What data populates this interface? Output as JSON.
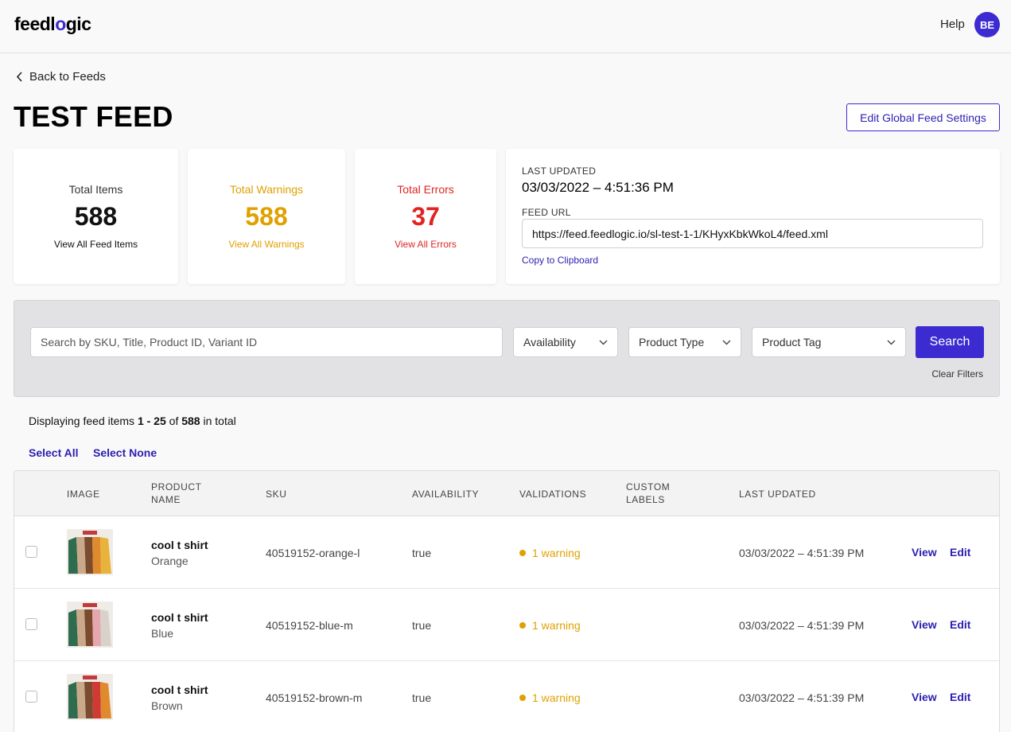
{
  "header": {
    "logo_prefix": "feedl",
    "logo_mark": "o",
    "logo_suffix": "gic",
    "help_label": "Help",
    "avatar_initials": "BE"
  },
  "nav": {
    "back_label": "Back to Feeds"
  },
  "page": {
    "title": "TEST FEED",
    "edit_global_label": "Edit Global Feed Settings"
  },
  "stats": {
    "total_items": {
      "label": "Total Items",
      "value": "588",
      "link": "View All Feed Items"
    },
    "total_warnings": {
      "label": "Total Warnings",
      "value": "588",
      "link": "View All Warnings"
    },
    "total_errors": {
      "label": "Total Errors",
      "value": "37",
      "link": "View All Errors"
    }
  },
  "feed_info": {
    "last_updated_label": "LAST UPDATED",
    "last_updated_value": "03/03/2022 – 4:51:36 PM",
    "feed_url_label": "FEED URL",
    "feed_url_value": "https://feed.feedlogic.io/sl-test-1-1/KHyxKbkWkoL4/feed.xml",
    "copy_label": "Copy to Clipboard"
  },
  "filters": {
    "search_placeholder": "Search by SKU, Title, Product ID, Variant ID",
    "availability": "Availability",
    "product_type": "Product Type",
    "product_tag": "Product Tag",
    "search_button": "Search",
    "clear_filters": "Clear Filters"
  },
  "listing": {
    "display_prefix": "Displaying feed items ",
    "display_range": "1 - 25",
    "display_of": " of ",
    "display_total": "588",
    "display_suffix": " in total",
    "select_all": "Select All",
    "select_none": "Select None"
  },
  "table": {
    "columns": {
      "image": "IMAGE",
      "product_name_line1": "PRODUCT",
      "product_name_line2": "NAME",
      "sku": "SKU",
      "availability": "AVAILABILITY",
      "validations": "VALIDATIONS",
      "custom_labels_line1": "CUSTOM",
      "custom_labels_line2": "LABELS",
      "last_updated": "LAST UPDATED"
    },
    "rows": [
      {
        "name": "cool t shirt",
        "variant": "Orange",
        "sku": "40519152-orange-l",
        "availability": "true",
        "validation": "1 warning",
        "last_updated": "03/03/2022 – 4:51:39 PM",
        "view": "View",
        "edit": "Edit"
      },
      {
        "name": "cool t shirt",
        "variant": "Blue",
        "sku": "40519152-blue-m",
        "availability": "true",
        "validation": "1 warning",
        "last_updated": "03/03/2022 – 4:51:39 PM",
        "view": "View",
        "edit": "Edit"
      },
      {
        "name": "cool t shirt",
        "variant": "Brown",
        "sku": "40519152-brown-m",
        "availability": "true",
        "validation": "1 warning",
        "last_updated": "03/03/2022 – 4:51:39 PM",
        "view": "View",
        "edit": "Edit"
      }
    ]
  },
  "colors": {
    "accent": "#3b2bd1",
    "warning": "#e0a100",
    "error": "#e02424"
  }
}
